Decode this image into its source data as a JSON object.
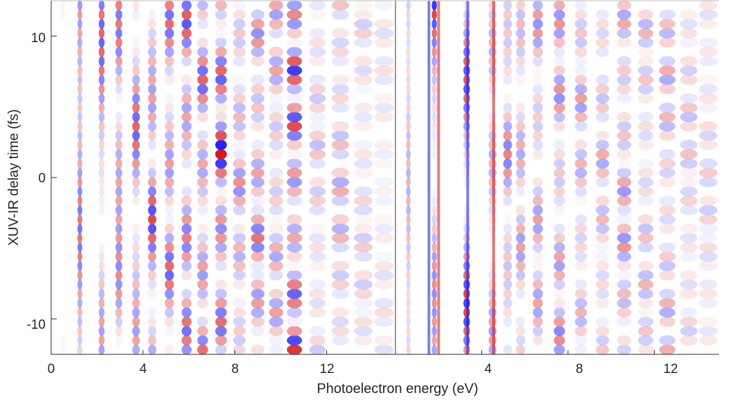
{
  "chart_data": [
    {
      "type": "heatmap",
      "panel": "left",
      "title": "",
      "xlabel": "Photoelectron energy (eV)",
      "ylabel": "XUV-IR delay time (fs)",
      "xlim": [
        0,
        15
      ],
      "ylim": [
        -12.5,
        12.5
      ],
      "x_ticks": [
        0,
        4,
        8,
        12
      ],
      "x_tick_labels": [
        "0",
        "4",
        "8",
        "12"
      ],
      "y_ticks": [
        -10,
        0,
        10
      ],
      "y_tick_labels": [
        "-10",
        "0",
        "10"
      ],
      "colormap": "blue-white-red diverging",
      "colors": {
        "negative": "#0000ff",
        "zero": "#ffffff",
        "positive": "#d40000"
      },
      "oscillation_period_fs": 1.33,
      "energy_bands_eV": [
        0.5,
        1.25,
        2.2,
        2.95,
        3.7,
        4.4,
        5.15,
        5.9,
        6.6,
        7.4,
        8.2,
        9.0,
        9.8,
        10.6,
        11.6,
        12.6,
        13.6,
        14.5
      ],
      "band_amplitude": [
        0.85,
        0.65,
        0.7,
        0.95,
        0.7,
        0.85,
        0.75,
        0.75,
        0.7,
        0.95,
        0.55,
        0.65,
        0.5,
        0.85,
        0.35,
        0.45,
        0.3,
        0.2
      ],
      "band_phase_offset": [
        0.0,
        0.5,
        0.15,
        0.7,
        0.2,
        0.85,
        0.3,
        1.0,
        0.45,
        1.2,
        0.6,
        1.4,
        0.75,
        1.55,
        0.9,
        1.7,
        1.05,
        1.85
      ]
    },
    {
      "type": "heatmap",
      "panel": "right",
      "title": "",
      "xlabel": "Photoelectron energy (eV)",
      "ylabel": "",
      "xlim": [
        0,
        15
      ],
      "ylim": [
        -12.5,
        12.5
      ],
      "x_ticks": [
        4,
        8,
        12
      ],
      "x_tick_labels": [
        "4",
        "8",
        "12"
      ],
      "colormap": "blue-white-red diverging",
      "colors": {
        "negative": "#0000ff",
        "zero": "#ffffff",
        "positive": "#d40000"
      },
      "oscillation_period_fs": 1.33,
      "energy_bands_eV": [
        0.6,
        1.8,
        3.3,
        4.5,
        5.2,
        5.8,
        6.6,
        7.6,
        8.6,
        9.6,
        10.6,
        11.6,
        12.6,
        13.6,
        14.5
      ],
      "band_amplitude": [
        0.5,
        0.95,
        0.8,
        0.55,
        0.6,
        0.55,
        0.55,
        0.6,
        0.5,
        0.45,
        0.55,
        0.4,
        0.45,
        0.35,
        0.3
      ],
      "band_phase_offset": [
        0.3,
        0.0,
        1.1,
        0.5,
        1.3,
        0.2,
        0.9,
        1.5,
        0.4,
        1.2,
        0.7,
        1.6,
        0.3,
        1.0,
        1.4
      ]
    }
  ]
}
